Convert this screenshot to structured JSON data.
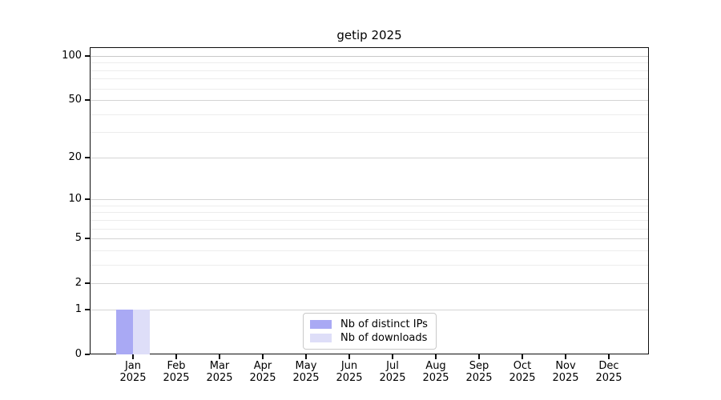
{
  "chart_data": {
    "type": "bar",
    "title": "getip 2025",
    "categories": [
      "Jan\n2025",
      "Feb\n2025",
      "Mar\n2025",
      "Apr\n2025",
      "May\n2025",
      "Jun\n2025",
      "Jul\n2025",
      "Aug\n2025",
      "Sep\n2025",
      "Oct\n2025",
      "Nov\n2025",
      "Dec\n2025"
    ],
    "series": [
      {
        "name": "Nb of distinct IPs",
        "color": "#a9a9f4",
        "values": [
          1,
          0,
          0,
          0,
          0,
          0,
          0,
          0,
          0,
          0,
          0,
          0
        ]
      },
      {
        "name": "Nb of downloads",
        "color": "#dedef8",
        "values": [
          1,
          0,
          0,
          0,
          0,
          0,
          0,
          0,
          0,
          0,
          0,
          0
        ]
      }
    ],
    "xlabel": "",
    "ylabel": "",
    "y_axis": {
      "ticks": [
        0,
        1,
        2,
        5,
        10,
        20,
        50,
        100
      ],
      "minor_gridlines": [
        3,
        4,
        6,
        7,
        8,
        9,
        30,
        40,
        60,
        70,
        80,
        90
      ],
      "scale": "log1p",
      "ylim": [
        0,
        100
      ]
    },
    "grid": "horizontal major+minor",
    "legend": {
      "position": "lower center"
    },
    "colors": {
      "spine": "#0d0d0d",
      "grid_major": "#d4d4d4",
      "grid_minor": "#ececec",
      "legend_border": "#c9c9c9",
      "background": "#ffffff"
    }
  }
}
